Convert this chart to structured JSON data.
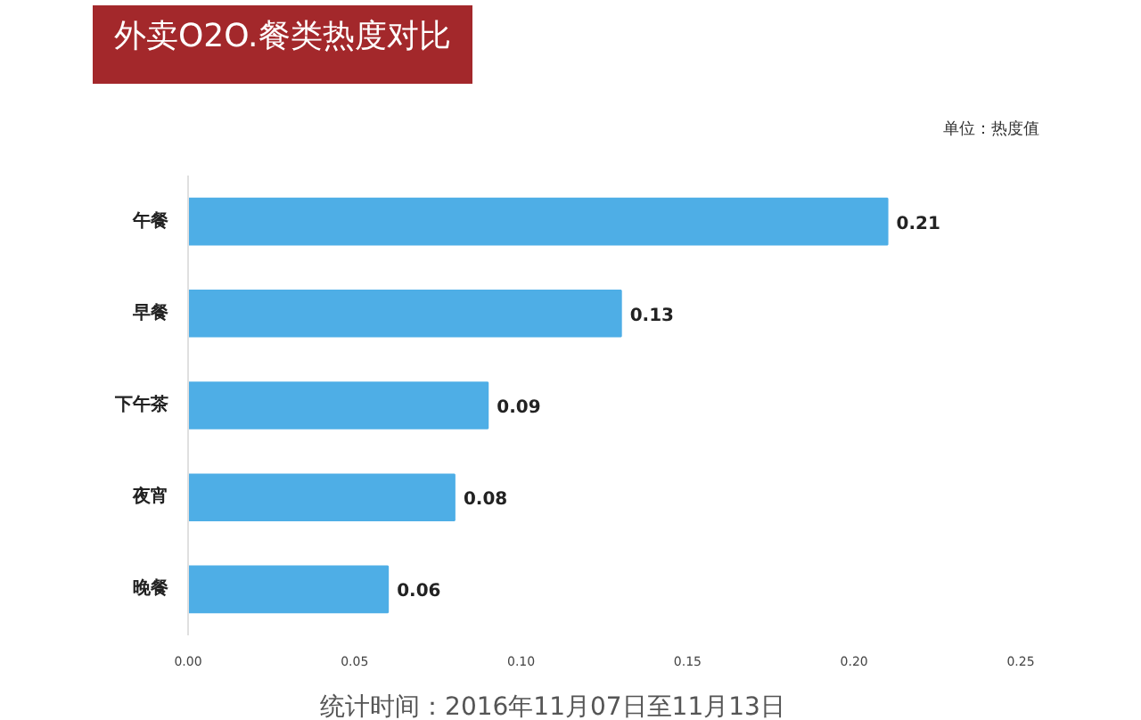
{
  "chart_data": {
    "type": "bar",
    "orientation": "horizontal",
    "title": "外卖O2O.餐类热度对比",
    "annotations": [
      "单位：热度值",
      "统计时间：2016年11月07日至11月13日"
    ],
    "categories": [
      "午餐",
      "早餐",
      "下午茶",
      "夜宵",
      "晚餐"
    ],
    "values": [
      0.21,
      0.13,
      0.09,
      0.08,
      0.06
    ],
    "color": "#4eaee6",
    "xlim": [
      0,
      0.25
    ],
    "xticks": [
      {
        "value": 0,
        "label": "0.00"
      },
      {
        "value": 0.05,
        "label": "0.05"
      },
      {
        "value": 0.1,
        "label": "0.10"
      },
      {
        "value": 0.15,
        "label": "0.15"
      },
      {
        "value": 0.2,
        "label": "0.20"
      },
      {
        "value": 0.25,
        "label": "0.25"
      }
    ],
    "data_labels": true,
    "grid": false
  }
}
